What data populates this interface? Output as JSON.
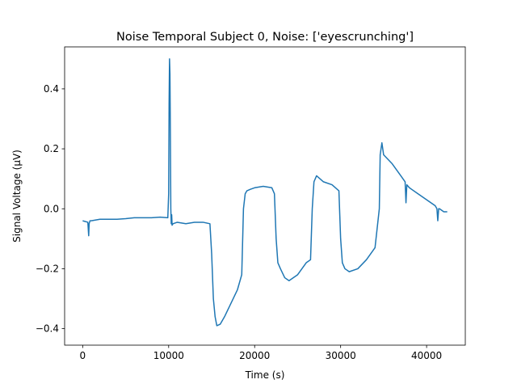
{
  "chart_data": {
    "type": "line",
    "title": "Noise Temporal Subject 0, Noise: ['eyescrunching']",
    "xlabel": "Time (s)",
    "ylabel": "Signal Voltage (µV)",
    "xlim": [
      -2100,
      44500
    ],
    "ylim": [
      -0.455,
      0.54
    ],
    "x_ticks": [
      0,
      10000,
      20000,
      30000,
      40000
    ],
    "x_tick_labels": [
      "0",
      "10000",
      "20000",
      "30000",
      "40000"
    ],
    "y_ticks": [
      -0.4,
      -0.2,
      0.0,
      0.2,
      0.4
    ],
    "y_tick_labels": [
      "−0.4",
      "−0.2",
      "0.0",
      "0.2",
      "0.4"
    ],
    "grid": false,
    "series": [
      {
        "color": "#1f77b4",
        "x": [
          0,
          600,
          700,
          750,
          850,
          1000,
          2000,
          3000,
          4000,
          5000,
          6000,
          7000,
          8000,
          9000,
          9900,
          10000,
          10050,
          10100,
          10150,
          10200,
          10250,
          10300,
          10350,
          10400,
          10500,
          11000,
          12000,
          13000,
          14000,
          14800,
          15000,
          15200,
          15400,
          15600,
          16000,
          16500,
          17000,
          17500,
          18000,
          18500,
          18700,
          18900,
          19100,
          19500,
          20000,
          21000,
          22000,
          22300,
          22500,
          22700,
          23000,
          23500,
          24000,
          25000,
          26000,
          26500,
          26700,
          26900,
          27200,
          28000,
          29000,
          29800,
          30000,
          30200,
          30500,
          31000,
          32000,
          33000,
          34000,
          34500,
          34600,
          34800,
          35000,
          36000,
          37000,
          37500,
          37600,
          37700,
          38000,
          39000,
          40000,
          41000,
          41200,
          41300,
          41400,
          41500,
          42000,
          42400
        ],
        "y": [
          -0.04,
          -0.045,
          -0.09,
          -0.05,
          -0.04,
          -0.04,
          -0.035,
          -0.035,
          -0.035,
          -0.033,
          -0.03,
          -0.03,
          -0.03,
          -0.028,
          -0.03,
          0.05,
          0.35,
          0.5,
          0.45,
          0.25,
          0.0,
          -0.05,
          -0.02,
          -0.055,
          -0.05,
          -0.045,
          -0.05,
          -0.045,
          -0.045,
          -0.05,
          -0.15,
          -0.3,
          -0.36,
          -0.39,
          -0.385,
          -0.36,
          -0.33,
          -0.3,
          -0.27,
          -0.22,
          0.0,
          0.05,
          0.06,
          0.065,
          0.07,
          0.075,
          0.07,
          0.05,
          -0.1,
          -0.18,
          -0.2,
          -0.23,
          -0.24,
          -0.22,
          -0.18,
          -0.17,
          0.0,
          0.09,
          0.11,
          0.09,
          0.08,
          0.06,
          -0.1,
          -0.18,
          -0.2,
          -0.21,
          -0.2,
          -0.17,
          -0.13,
          0.0,
          0.18,
          0.22,
          0.18,
          0.15,
          0.11,
          0.09,
          0.02,
          0.08,
          0.07,
          0.05,
          0.03,
          0.01,
          0.0,
          -0.04,
          0.0,
          0.0,
          -0.01,
          -0.01
        ]
      }
    ]
  }
}
